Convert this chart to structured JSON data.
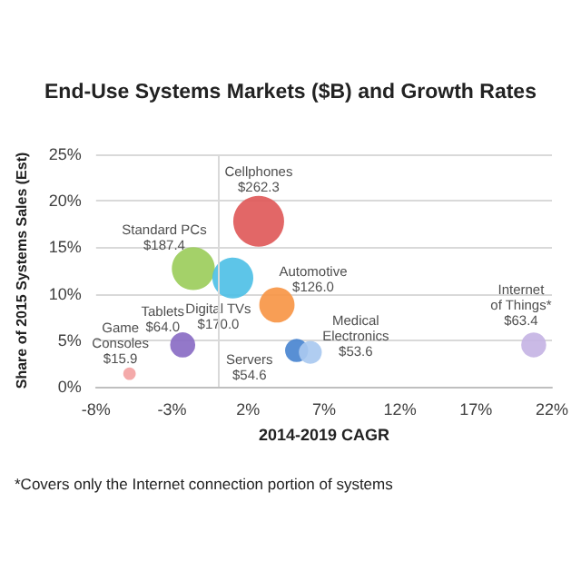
{
  "chart_data": {
    "type": "bubble",
    "title": "End-Use Systems Markets ($B) and Growth Rates",
    "xlabel": "2014-2019 CAGR",
    "ylabel": "Share of 2015 Systems Sales (Est)",
    "annotations": [
      "*Covers only the Internet connection portion of systems"
    ],
    "series": [
      {
        "name": "Cellphones",
        "color": "#e05a5a",
        "x": [
          2.7
        ],
        "values": [
          17.8
        ],
        "sizes": [
          262.3
        ],
        "value_labels": [
          "$262.3"
        ]
      },
      {
        "name": "Standard PCs",
        "color": "#9ccd5c",
        "x": [
          -1.6
        ],
        "values": [
          12.7
        ],
        "sizes": [
          187.4
        ],
        "value_labels": [
          "$187.4"
        ]
      },
      {
        "name": "Digital TVs",
        "color": "#4fc0e6",
        "x": [
          1.0
        ],
        "values": [
          11.7
        ],
        "sizes": [
          170.0
        ],
        "value_labels": [
          "$170.0"
        ]
      },
      {
        "name": "Automotive",
        "color": "#f79646",
        "x": [
          3.9
        ],
        "values": [
          8.8
        ],
        "sizes": [
          126.0
        ],
        "value_labels": [
          "$126.0"
        ]
      },
      {
        "name": "Tablets",
        "color": "#8a6cc4",
        "x": [
          -2.3
        ],
        "values": [
          4.5
        ],
        "sizes": [
          64.0
        ],
        "value_labels": [
          "$64.0"
        ]
      },
      {
        "name": "Game\nConsoles",
        "color": "#f3a3a3",
        "x": [
          -5.8
        ],
        "values": [
          1.4
        ],
        "sizes": [
          15.9
        ],
        "value_labels": [
          "$15.9"
        ]
      },
      {
        "name": "Servers",
        "color": "#4a86d0",
        "x": [
          5.2
        ],
        "values": [
          3.9
        ],
        "sizes": [
          54.6
        ],
        "value_labels": [
          "$54.6"
        ]
      },
      {
        "name": "Medical\nElectronics",
        "color": "#a9c9f0",
        "x": [
          6.1
        ],
        "values": [
          3.7
        ],
        "sizes": [
          53.6
        ],
        "value_labels": [
          "$53.6"
        ]
      },
      {
        "name": "Internet\nof Things*",
        "color": "#c5b4e4",
        "x": [
          20.8
        ],
        "values": [
          4.5
        ],
        "sizes": [
          63.4
        ],
        "value_labels": [
          "$63.4"
        ]
      }
    ],
    "xlim": [
      -8,
      22
    ],
    "xticks": [
      {
        "value": -8,
        "label": "-8%"
      },
      {
        "value": -3,
        "label": "-3%"
      },
      {
        "value": 2,
        "label": "2%"
      },
      {
        "value": 7,
        "label": "7%"
      },
      {
        "value": 12,
        "label": "12%"
      },
      {
        "value": 17,
        "label": "17%"
      },
      {
        "value": 22,
        "label": "22%"
      }
    ],
    "ylim": [
      0,
      25
    ],
    "yticks": [
      {
        "value": 0,
        "label": "0%"
      },
      {
        "value": 5,
        "label": "5%"
      },
      {
        "value": 10,
        "label": "10%"
      },
      {
        "value": 15,
        "label": "15%"
      },
      {
        "value": 20,
        "label": "20%"
      },
      {
        "value": 25,
        "label": "25%"
      }
    ],
    "ref_lines": [
      {
        "axis": "x",
        "value": 0,
        "color": "#d9d9d9"
      }
    ],
    "grid": "y",
    "legend": false
  }
}
